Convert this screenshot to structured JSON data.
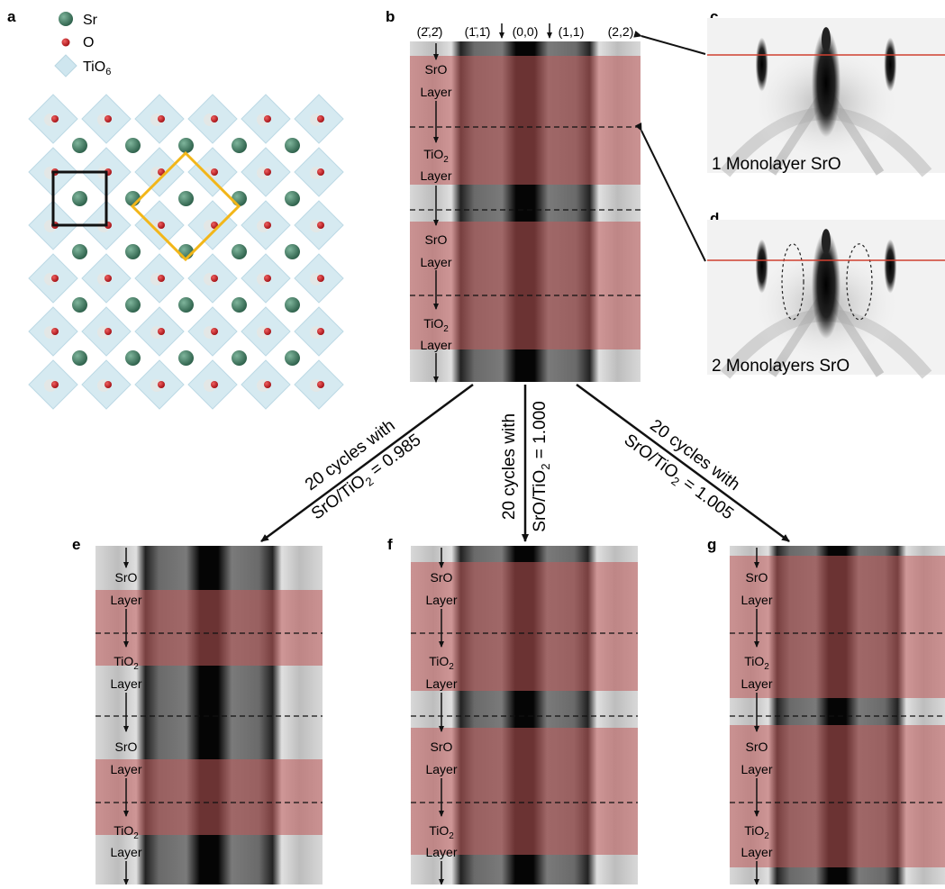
{
  "panels": {
    "a": "a",
    "b": "b",
    "c": "c",
    "d": "d",
    "e": "e",
    "f": "f",
    "g": "g"
  },
  "legend": {
    "sr": "Sr",
    "o": "O",
    "tio6_base": "TiO",
    "tio6_sub": "6"
  },
  "colors": {
    "sr": "#3f7a62",
    "o": "#c8161d",
    "octahedron": "#cfe6ef",
    "unit_cell": "#111111",
    "supercell": "#f2b619",
    "red_band": "#c05a5a",
    "red_line": "#d04030"
  },
  "indices": {
    "m22": "(2̄,2̄)",
    "m11": "(1̄,1̄)",
    "o00": "(0,0)",
    "p11": "(1,1)",
    "p22": "(2,2)"
  },
  "labels": {
    "sro_line1": "SrO",
    "layer": "Layer",
    "tio2_base": "TiO",
    "tio2_sub": "2"
  },
  "captions": {
    "c": "1 Monolayer SrO",
    "d": "2 Monolayers SrO"
  },
  "arrows": {
    "left_line1": "20 cycles with",
    "left_line2_base": "SrO/TiO",
    "left_line2_sub": "2",
    "left_line2_tail": " = 0.985",
    "mid_line1": "20 cycles with",
    "mid_line2_base": "SrO/TiO",
    "mid_line2_sub": "2",
    "mid_line2_tail": " = 1.000",
    "right_line1": "20 cycles with",
    "right_line2_base": "SrO/TiO",
    "right_line2_sub": "2",
    "right_line2_tail": " = 1.005"
  }
}
